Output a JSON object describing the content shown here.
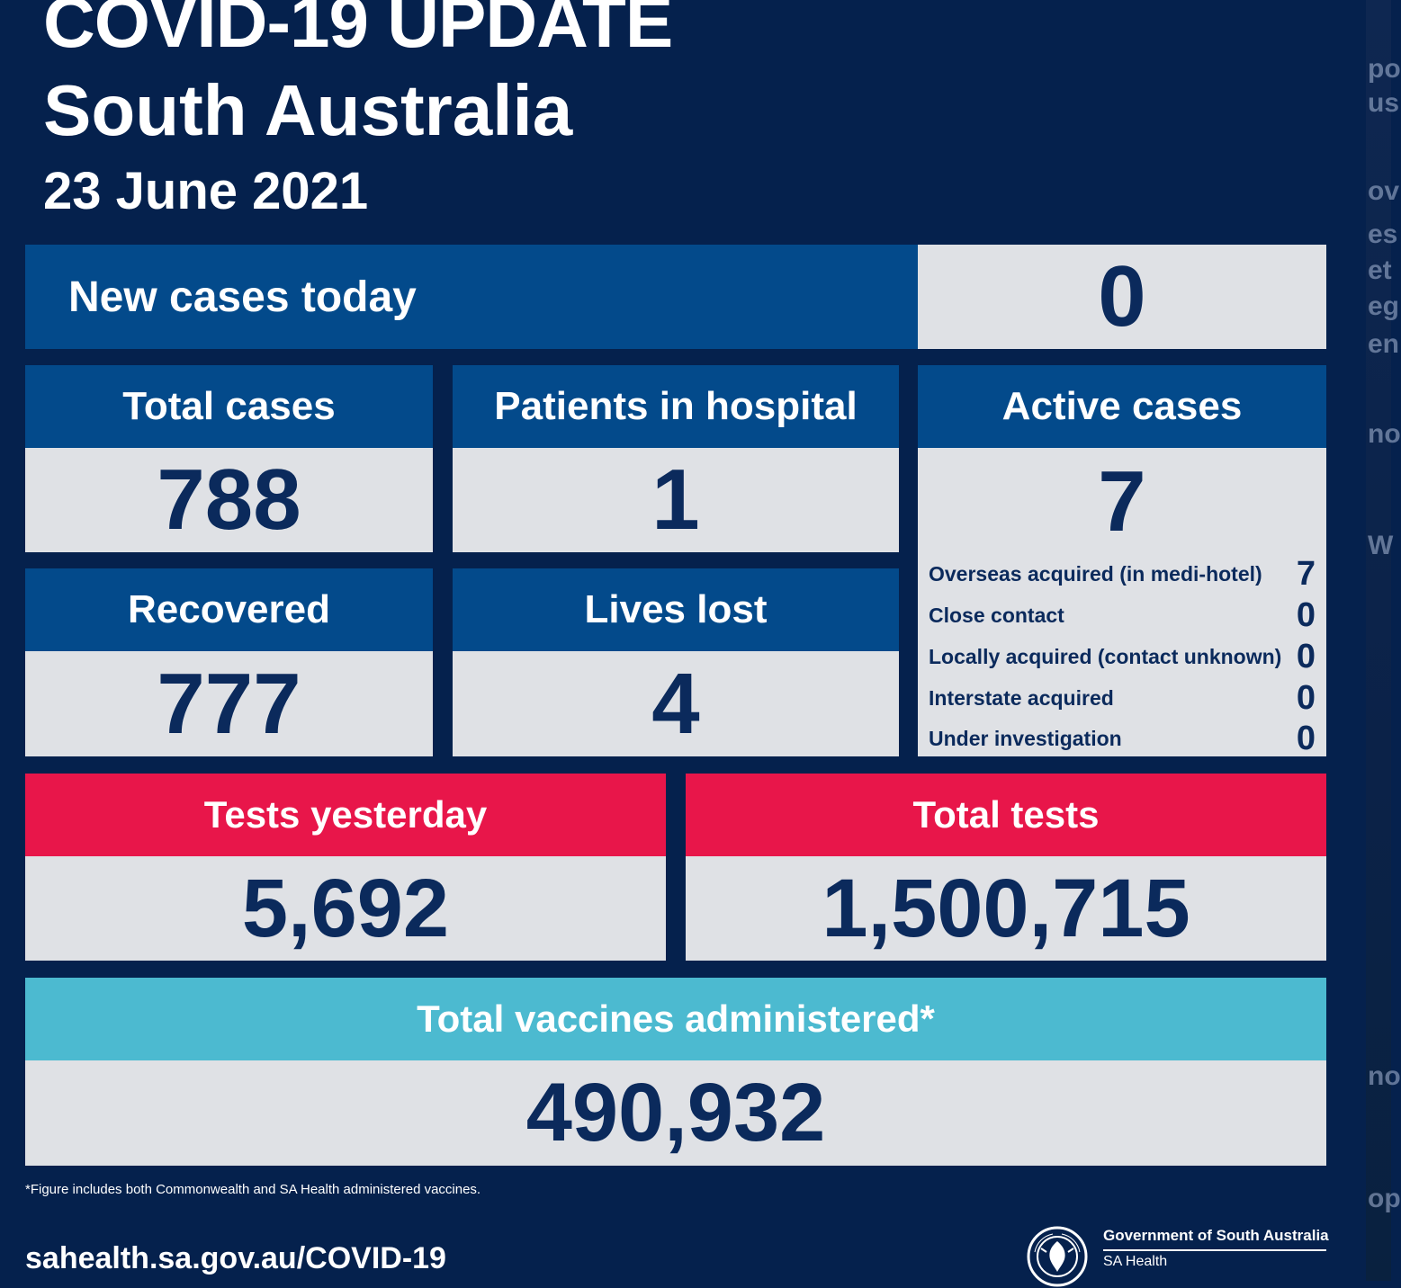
{
  "header": {
    "title": "COVID-19 UPDATE",
    "region": "South Australia",
    "date": "23 June 2021"
  },
  "new_cases": {
    "label": "New cases today",
    "value": "0"
  },
  "total_cases": {
    "label": "Total cases",
    "value": "788"
  },
  "patients_in_hospital": {
    "label": "Patients in hospital",
    "value": "1"
  },
  "active_cases": {
    "label": "Active cases",
    "value": "7",
    "breakdown": [
      {
        "label": "Overseas acquired (in medi-hotel)",
        "value": "7"
      },
      {
        "label": "Close contact",
        "value": "0"
      },
      {
        "label": "Locally acquired (contact unknown)",
        "value": "0"
      },
      {
        "label": "Interstate acquired",
        "value": "0"
      },
      {
        "label": "Under investigation",
        "value": "0"
      }
    ]
  },
  "recovered": {
    "label": "Recovered",
    "value": "777"
  },
  "lives_lost": {
    "label": "Lives lost",
    "value": "4"
  },
  "tests_yesterday": {
    "label": "Tests yesterday",
    "value": "5,692"
  },
  "total_tests": {
    "label": "Total tests",
    "value": "1,500,715"
  },
  "vaccines": {
    "label": "Total vaccines administered*",
    "value": "490,932"
  },
  "footnote": "*Figure includes both Commonwealth and SA Health administered vaccines.",
  "footer": {
    "url": "sahealth.sa.gov.au/COVID-19",
    "government": "Government of South Australia",
    "department": "SA Health"
  },
  "colors": {
    "background": "#05214d",
    "header_blue": "#034a8b",
    "value_bg": "#dfe1e5",
    "value_text": "#0b2a5c",
    "tests_red": "#e8164a",
    "vaccine_teal": "#4cbad0"
  },
  "icons": {
    "logo": "south-australia-crest-icon"
  }
}
